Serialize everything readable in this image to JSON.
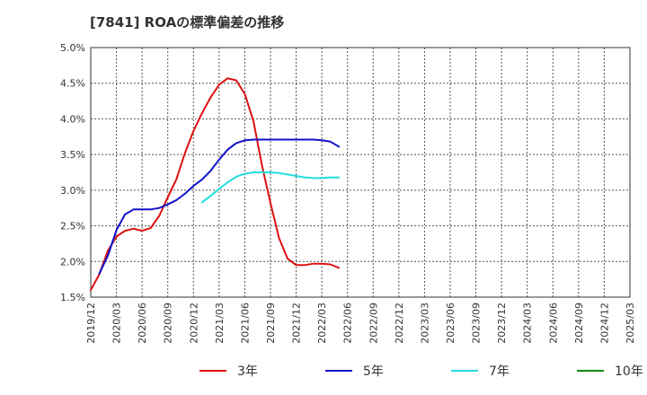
{
  "title": "[7841]  ROAの標準偏差の推移",
  "chart_data": {
    "type": "line",
    "title": "[7841]  ROAの標準偏差の推移",
    "xlabel": "",
    "ylabel": "",
    "ylim": [
      1.5,
      5.0
    ],
    "yticks": [
      1.5,
      2.0,
      2.5,
      3.0,
      3.5,
      4.0,
      4.5,
      5.0
    ],
    "ytick_labels": [
      "1.5%",
      "2.0%",
      "2.5%",
      "3.0%",
      "3.5%",
      "4.0%",
      "4.5%",
      "5.0%"
    ],
    "xticks": [
      "2019/12",
      "2020/03",
      "2020/06",
      "2020/09",
      "2020/12",
      "2021/03",
      "2021/06",
      "2021/09",
      "2021/12",
      "2022/03",
      "2022/06",
      "2022/09",
      "2022/12",
      "2023/03",
      "2023/06",
      "2023/09",
      "2023/12",
      "2024/03",
      "2024/06",
      "2024/09",
      "2024/12",
      "2025/03"
    ],
    "grid": true,
    "legend_position": "bottom",
    "series": [
      {
        "name": "3年",
        "color": "#dd1111",
        "points": [
          [
            0,
            1.6
          ],
          [
            1,
            1.82
          ],
          [
            2,
            2.15
          ],
          [
            3,
            2.35
          ],
          [
            4,
            2.43
          ],
          [
            5,
            2.46
          ],
          [
            6,
            2.43
          ],
          [
            7,
            2.47
          ],
          [
            8,
            2.64
          ],
          [
            9,
            2.9
          ],
          [
            10,
            3.15
          ],
          [
            11,
            3.52
          ],
          [
            12,
            3.83
          ],
          [
            13,
            4.08
          ],
          [
            14,
            4.3
          ],
          [
            15,
            4.48
          ],
          [
            16,
            4.57
          ],
          [
            17,
            4.54
          ],
          [
            18,
            4.35
          ],
          [
            19,
            3.97
          ],
          [
            20,
            3.35
          ],
          [
            21,
            2.82
          ],
          [
            22,
            2.33
          ],
          [
            23,
            2.04
          ],
          [
            24,
            1.95
          ],
          [
            25,
            1.95
          ],
          [
            26,
            1.97
          ],
          [
            27,
            1.97
          ],
          [
            28,
            1.96
          ],
          [
            29,
            1.91
          ]
        ]
      },
      {
        "name": "5年",
        "color": "#1111cc",
        "points": [
          [
            1,
            1.83
          ],
          [
            2,
            2.08
          ],
          [
            3,
            2.44
          ],
          [
            4,
            2.66
          ],
          [
            5,
            2.73
          ],
          [
            6,
            2.73
          ],
          [
            7,
            2.73
          ],
          [
            8,
            2.75
          ],
          [
            9,
            2.8
          ],
          [
            10,
            2.86
          ],
          [
            11,
            2.95
          ],
          [
            12,
            3.06
          ],
          [
            13,
            3.15
          ],
          [
            14,
            3.27
          ],
          [
            15,
            3.43
          ],
          [
            16,
            3.57
          ],
          [
            17,
            3.66
          ],
          [
            18,
            3.7
          ],
          [
            19,
            3.71
          ],
          [
            20,
            3.71
          ],
          [
            21,
            3.71
          ],
          [
            22,
            3.71
          ],
          [
            23,
            3.71
          ],
          [
            24,
            3.71
          ],
          [
            25,
            3.71
          ],
          [
            26,
            3.71
          ],
          [
            27,
            3.7
          ],
          [
            28,
            3.68
          ],
          [
            29,
            3.61
          ]
        ]
      },
      {
        "name": "7年",
        "color": "#22dddd",
        "points": [
          [
            13,
            2.83
          ],
          [
            14,
            2.92
          ],
          [
            15,
            3.02
          ],
          [
            16,
            3.11
          ],
          [
            17,
            3.19
          ],
          [
            18,
            3.23
          ],
          [
            19,
            3.25
          ],
          [
            20,
            3.25
          ],
          [
            21,
            3.25
          ],
          [
            22,
            3.24
          ],
          [
            23,
            3.22
          ],
          [
            24,
            3.2
          ],
          [
            25,
            3.18
          ],
          [
            26,
            3.17
          ],
          [
            27,
            3.17
          ],
          [
            28,
            3.18
          ],
          [
            29,
            3.18
          ]
        ]
      },
      {
        "name": "10年",
        "color": "#118811",
        "points": []
      }
    ]
  }
}
